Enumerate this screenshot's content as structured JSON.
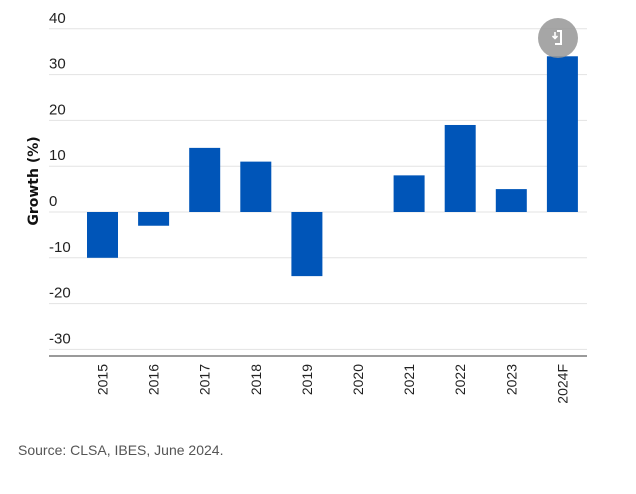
{
  "chart_data": {
    "type": "bar",
    "title": "",
    "xlabel": "",
    "ylabel": "Growth (%)",
    "categories": [
      "2015",
      "2016",
      "2017",
      "2018",
      "2019",
      "2020",
      "2021",
      "2022",
      "2023",
      "2024F"
    ],
    "values": [
      -10,
      -3,
      14,
      11,
      -14,
      0,
      8,
      19,
      5,
      34
    ],
    "ylim": [
      -32,
      40
    ],
    "yticks": [
      40,
      30,
      20,
      10,
      0,
      -10,
      -20,
      -30
    ],
    "grid": true,
    "bar_color": "#0055b8",
    "legend": "none"
  },
  "source": "Source: CLSA, IBES, June 2024.",
  "download_button": {
    "icon": "download-icon"
  }
}
